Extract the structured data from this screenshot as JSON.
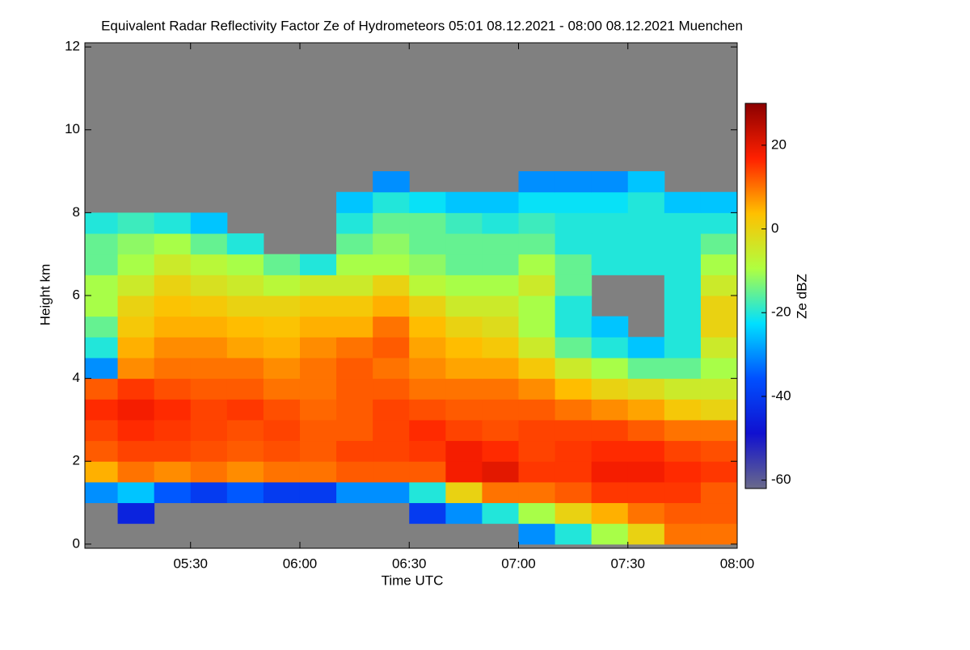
{
  "chart_data": {
    "type": "heatmap",
    "title": "Equivalent Radar Reflectivity Factor Ze of Hydrometeors   05:01 08.12.2021 - 08:00 08.12.2021 Muenchen",
    "x_label": "Time UTC",
    "y_label": "Height km",
    "colorbar_label": "Ze dBZ",
    "xlim": [
      "05:01",
      "08:00"
    ],
    "xticks": [
      "05:30",
      "06:00",
      "06:30",
      "07:00",
      "07:30",
      "08:00"
    ],
    "ylim": [
      -0.1,
      12.1
    ],
    "yticks": [
      0,
      2,
      4,
      6,
      8,
      10,
      12
    ],
    "zlim": [
      -62,
      30
    ],
    "zticks": [
      -60,
      -40,
      -20,
      0,
      20
    ],
    "background": "#808080",
    "colormap": [
      "#6a6a8a",
      "#1010d0",
      "#0050ff",
      "#00e0ff",
      "#b0ff40",
      "#ffc000",
      "#ff2000",
      "#8b0000"
    ],
    "x_bins": [
      "05:00",
      "05:10",
      "05:20",
      "05:30",
      "05:40",
      "05:50",
      "06:00",
      "06:10",
      "06:20",
      "06:30",
      "06:40",
      "06:50",
      "07:00",
      "07:10",
      "07:20",
      "07:30",
      "07:40",
      "07:50",
      "08:00"
    ],
    "y_bins": [
      0,
      0.5,
      1,
      1.5,
      2,
      2.5,
      3,
      3.5,
      4,
      4.5,
      5,
      5.5,
      6,
      6.5,
      7,
      7.5,
      8,
      8.5,
      9
    ],
    "z": [
      [
        null,
        null,
        null,
        null,
        null,
        null,
        null,
        null,
        null,
        null,
        null,
        null,
        -30,
        -20,
        -10,
        0,
        10,
        10
      ],
      [
        null,
        -45,
        null,
        null,
        null,
        null,
        null,
        null,
        null,
        -40,
        -30,
        -20,
        -10,
        0,
        5,
        10,
        12,
        12
      ],
      [
        -30,
        -25,
        -35,
        -40,
        -35,
        -40,
        -40,
        -30,
        -30,
        -20,
        0,
        10,
        10,
        12,
        15,
        15,
        15,
        12
      ],
      [
        5,
        10,
        8,
        10,
        8,
        10,
        10,
        12,
        12,
        12,
        18,
        20,
        15,
        15,
        18,
        18,
        16,
        15
      ],
      [
        12,
        14,
        14,
        13,
        12,
        13,
        12,
        14,
        14,
        15,
        18,
        16,
        14,
        15,
        16,
        16,
        14,
        13
      ],
      [
        14,
        16,
        15,
        14,
        13,
        14,
        12,
        12,
        14,
        16,
        14,
        13,
        14,
        14,
        14,
        12,
        10,
        10
      ],
      [
        16,
        18,
        16,
        14,
        15,
        13,
        11,
        12,
        14,
        13,
        12,
        12,
        12,
        10,
        8,
        6,
        2,
        0
      ],
      [
        12,
        15,
        13,
        12,
        12,
        10,
        10,
        12,
        12,
        10,
        10,
        10,
        8,
        4,
        0,
        -2,
        -5,
        -5
      ],
      [
        -30,
        8,
        10,
        10,
        10,
        8,
        10,
        12,
        10,
        8,
        6,
        6,
        2,
        -5,
        -10,
        -15,
        -15,
        -10
      ],
      [
        -20,
        5,
        8,
        8,
        6,
        5,
        8,
        10,
        12,
        6,
        4,
        2,
        -5,
        -15,
        -20,
        -25,
        -20,
        -5
      ],
      [
        -15,
        2,
        5,
        5,
        4,
        3,
        5,
        5,
        10,
        4,
        0,
        -2,
        -10,
        -20,
        -25,
        null,
        -20,
        0
      ],
      [
        -10,
        0,
        3,
        2,
        0,
        0,
        2,
        2,
        5,
        0,
        -5,
        -5,
        -10,
        -20,
        null,
        null,
        -20,
        0
      ],
      [
        -10,
        -5,
        0,
        -3,
        -5,
        -8,
        -5,
        -5,
        0,
        -8,
        -10,
        -10,
        -5,
        -15,
        null,
        null,
        -20,
        -5
      ],
      [
        -15,
        -10,
        -5,
        -8,
        -10,
        -15,
        -20,
        -10,
        -10,
        -12,
        -15,
        -15,
        -10,
        -15,
        -20,
        -20,
        -20,
        -10
      ],
      [
        -15,
        -12,
        -10,
        -15,
        -20,
        null,
        null,
        -15,
        -12,
        -15,
        -15,
        -15,
        -15,
        -20,
        -20,
        -20,
        -20,
        -15
      ],
      [
        -20,
        -18,
        -20,
        -25,
        null,
        null,
        null,
        -20,
        -15,
        -15,
        -18,
        -20,
        -18,
        -20,
        -20,
        -20,
        -20,
        -20
      ],
      [
        null,
        null,
        null,
        null,
        null,
        null,
        null,
        -25,
        -20,
        -22,
        -25,
        -25,
        -22,
        -22,
        -22,
        -20,
        -25,
        -25
      ],
      [
        null,
        null,
        null,
        null,
        null,
        null,
        null,
        null,
        -30,
        null,
        null,
        null,
        -30,
        -30,
        -30,
        -25,
        null,
        null
      ]
    ]
  }
}
